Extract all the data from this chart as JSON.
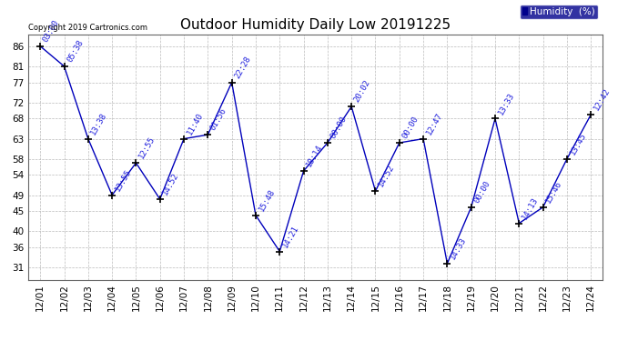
{
  "title": "Outdoor Humidity Daily Low 20191225",
  "copyright": "Copyright 2019 Cartronics.com",
  "legend_label": "Humidity  (%)",
  "ylim": [
    28,
    89
  ],
  "yticks": [
    31,
    36,
    40,
    45,
    49,
    54,
    58,
    63,
    68,
    72,
    77,
    81,
    86
  ],
  "dates": [
    "12/01",
    "12/02",
    "12/03",
    "12/04",
    "12/05",
    "12/06",
    "12/07",
    "12/08",
    "12/09",
    "12/10",
    "12/11",
    "12/12",
    "12/13",
    "12/14",
    "12/15",
    "12/16",
    "12/17",
    "12/18",
    "12/19",
    "12/20",
    "12/21",
    "12/22",
    "12/23",
    "12/24"
  ],
  "values": [
    86,
    81,
    63,
    49,
    57,
    48,
    63,
    64,
    77,
    44,
    35,
    55,
    62,
    71,
    50,
    62,
    63,
    32,
    46,
    68,
    42,
    46,
    58,
    69
  ],
  "times": [
    "03:00",
    "05:38",
    "13:38",
    "13:55",
    "12:55",
    "14:52",
    "11:40",
    "01:56",
    "22:28",
    "15:48",
    "14:21",
    "18:14",
    "00:00",
    "20:02",
    "14:52",
    "00:00",
    "12:47",
    "14:33",
    "00:00",
    "13:33",
    "14:13",
    "15:46",
    "13:45",
    "12:42"
  ],
  "line_color": "#0000bb",
  "marker_color": "#000000",
  "label_color": "#2222dd",
  "bg_color": "#ffffff",
  "grid_color": "#bbbbbb",
  "title_fontsize": 11,
  "label_fontsize": 6.5,
  "tick_fontsize": 7.5,
  "copyright_fontsize": 6,
  "legend_bg": "#00008b",
  "legend_fg": "#ffffff",
  "legend_fontsize": 7.5
}
